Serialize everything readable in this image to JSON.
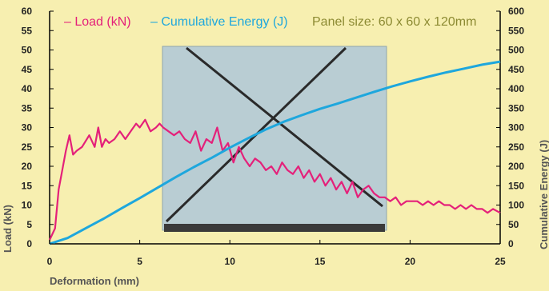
{
  "chart_data": {
    "type": "line",
    "title": "",
    "xlabel": "Deformation (mm)",
    "ylabel_left": "Load (kN)",
    "ylabel_right": "Cumulative Energy (J)",
    "xlim": [
      0,
      25
    ],
    "ylim_left": [
      0,
      60
    ],
    "ylim_right": [
      0,
      600
    ],
    "x_ticks": [
      "0",
      "5",
      "10",
      "15",
      "20",
      "25"
    ],
    "y_left_ticks": [
      "0",
      "5",
      "10",
      "15",
      "20",
      "25",
      "30",
      "35",
      "40",
      "45",
      "50",
      "55",
      "60"
    ],
    "y_right_ticks": [
      "0",
      "50",
      "100",
      "150",
      "200",
      "250",
      "300",
      "350",
      "400",
      "450",
      "500",
      "550",
      "600"
    ],
    "annotation": "Panel size: 60 x 60 x 120mm",
    "grid": false,
    "legend_position": "top",
    "background_color": "#f7efb0",
    "series": [
      {
        "name": "– Load (kN)",
        "axis": "left",
        "color": "#e4217a",
        "x": [
          0,
          0.3,
          0.5,
          0.7,
          0.9,
          1.1,
          1.3,
          1.5,
          1.8,
          2.2,
          2.5,
          2.7,
          2.9,
          3.1,
          3.3,
          3.6,
          3.9,
          4.2,
          4.5,
          4.8,
          5.0,
          5.3,
          5.6,
          5.9,
          6.1,
          6.3,
          6.6,
          6.9,
          7.2,
          7.5,
          7.8,
          8.1,
          8.4,
          8.7,
          9.0,
          9.3,
          9.6,
          9.9,
          10.2,
          10.5,
          10.8,
          11.1,
          11.4,
          11.7,
          12.0,
          12.3,
          12.6,
          12.9,
          13.2,
          13.5,
          13.8,
          14.1,
          14.4,
          14.7,
          15.0,
          15.3,
          15.6,
          15.9,
          16.2,
          16.5,
          16.8,
          17.1,
          17.4,
          17.7,
          18.0,
          18.3,
          18.6,
          18.9,
          19.2,
          19.5,
          19.8,
          20.1,
          20.4,
          20.7,
          21.0,
          21.3,
          21.6,
          21.9,
          22.2,
          22.5,
          22.8,
          23.1,
          23.4,
          23.7,
          24.0,
          24.3,
          24.6,
          25.0
        ],
        "values": [
          1,
          4,
          14,
          19,
          24,
          28,
          23,
          24,
          25,
          28,
          25,
          30,
          25,
          27,
          26,
          27,
          29,
          27,
          29,
          31,
          30,
          32,
          29,
          30,
          31,
          30,
          29,
          28,
          29,
          27,
          26,
          29,
          24,
          27,
          26,
          30,
          24,
          26,
          21,
          25,
          22,
          20,
          22,
          21,
          19,
          20,
          18,
          21,
          19,
          18,
          20,
          17,
          19,
          16,
          18,
          15,
          17,
          14,
          16,
          13,
          16,
          12,
          14,
          15,
          13,
          12,
          12,
          11,
          12,
          10,
          11,
          11,
          11,
          10,
          11,
          10,
          11,
          10,
          10,
          9,
          10,
          9,
          10,
          9,
          9,
          8,
          9,
          8
        ]
      },
      {
        "name": "– Cumulative Energy (J)",
        "axis": "right",
        "color": "#1ea7dd",
        "x": [
          0,
          1,
          2,
          3,
          4,
          5,
          6,
          7,
          8,
          9,
          10,
          11,
          12,
          13,
          14,
          15,
          16,
          17,
          18,
          19,
          20,
          21,
          22,
          23,
          24,
          25
        ],
        "values": [
          0,
          15,
          40,
          65,
          92,
          118,
          145,
          172,
          198,
          222,
          248,
          272,
          295,
          315,
          332,
          348,
          362,
          377,
          392,
          406,
          419,
          431,
          442,
          452,
          462,
          470
        ]
      }
    ]
  }
}
